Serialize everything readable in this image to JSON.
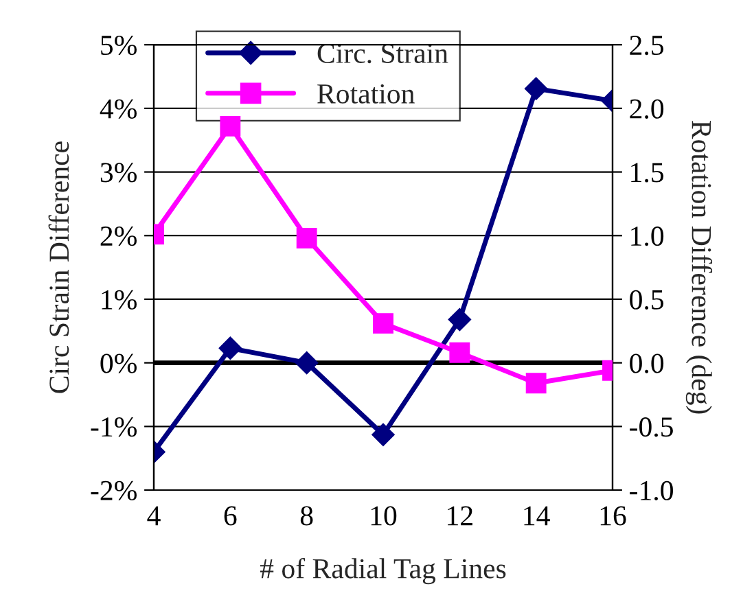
{
  "chart_data": {
    "type": "line",
    "xlabel": "# of Radial Tag Lines",
    "ylabel": "Circ Strain Difference",
    "y2label": "Rotation Difference (deg)",
    "x": [
      4,
      6,
      8,
      10,
      12,
      14,
      16
    ],
    "series": [
      {
        "name": "Circ. Strain",
        "color": "#000080",
        "marker": "diamond",
        "values": [
          -1.4,
          0.23,
          0.0,
          -1.13,
          0.68,
          4.31,
          4.12
        ]
      },
      {
        "name": "Rotation",
        "color": "#ff00ff",
        "marker": "square",
        "axis": "y2",
        "values": [
          1.01,
          1.86,
          0.98,
          0.31,
          0.08,
          -0.16,
          -0.06
        ]
      }
    ],
    "xlim": [
      4,
      16
    ],
    "xticks": [
      4,
      6,
      8,
      10,
      12,
      14,
      16
    ],
    "ylim": [
      -2,
      5
    ],
    "yticks": [
      {
        "value": -2,
        "label": "-2%"
      },
      {
        "value": -1,
        "label": "-1%"
      },
      {
        "value": 0,
        "label": "0%"
      },
      {
        "value": 1,
        "label": "1%"
      },
      {
        "value": 2,
        "label": "2%"
      },
      {
        "value": 3,
        "label": "3%"
      },
      {
        "value": 4,
        "label": "4%"
      },
      {
        "value": 5,
        "label": "5%"
      }
    ],
    "y2lim": [
      -1.0,
      2.5
    ],
    "y2ticks": [
      {
        "value": -1.0,
        "label": "-1.0"
      },
      {
        "value": -0.5,
        "label": "-0.5"
      },
      {
        "value": 0.0,
        "label": "0.0"
      },
      {
        "value": 0.5,
        "label": "0.5"
      },
      {
        "value": 1.0,
        "label": "1.0"
      },
      {
        "value": 1.5,
        "label": "1.5"
      },
      {
        "value": 2.0,
        "label": "2.0"
      },
      {
        "value": 2.5,
        "label": "2.5"
      }
    ],
    "ref_lines": [
      {
        "axis": "y",
        "value": 0,
        "color": "#000000"
      }
    ],
    "grid": "y",
    "legend": "top",
    "line_style": "solid"
  }
}
